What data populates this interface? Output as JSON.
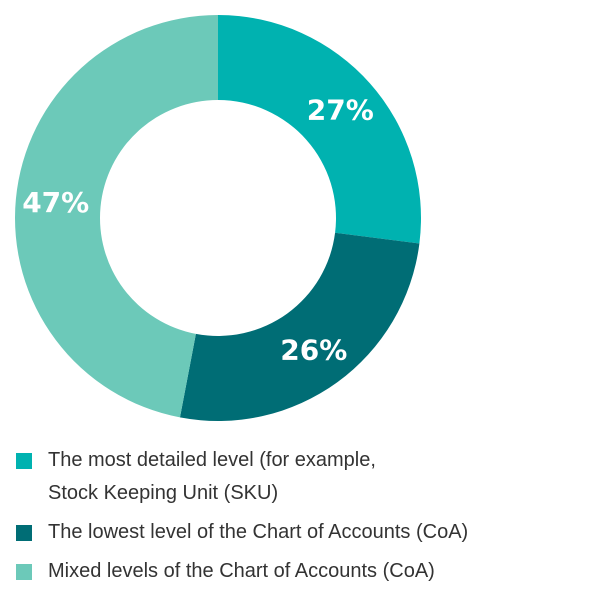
{
  "chart_data": {
    "type": "pie",
    "variant": "donut",
    "slices": [
      {
        "label": "The most detailed level (for example, Stock Keeping Unit (SKU)",
        "value": 27,
        "display": "27%",
        "color": "#00b2b0"
      },
      {
        "label": "The lowest level of the Chart of Accounts (CoA)",
        "value": 26,
        "display": "26%",
        "color": "#006d75"
      },
      {
        "label": "Mixed levels of the Chart of Accounts (CoA)",
        "value": 47,
        "display": "47%",
        "color": "#6cc9b9"
      }
    ],
    "legend_position": "bottom"
  },
  "legend": {
    "items": [
      {
        "line1": "The most detailed level (for example,",
        "line2": "Stock Keeping Unit (SKU)",
        "color": "#00b2b0"
      },
      {
        "line1": "The lowest level of the Chart of Accounts (CoA)",
        "color": "#006d75"
      },
      {
        "line1": "Mixed levels of the Chart of Accounts (CoA)",
        "color": "#6cc9b9"
      }
    ]
  }
}
